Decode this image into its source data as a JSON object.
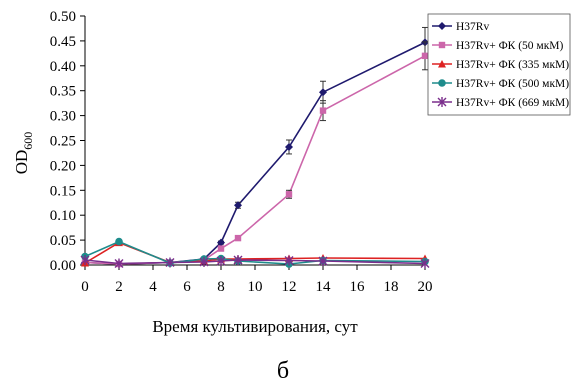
{
  "chart_data": {
    "type": "line",
    "xlabel": "Время культивирования, сут",
    "ylabel": "OD",
    "ylabel_sub": "600",
    "panel_label": "б",
    "xlim": [
      0,
      20
    ],
    "ylim": [
      0,
      0.5
    ],
    "x_ticks": [
      0,
      2,
      4,
      6,
      8,
      10,
      12,
      14,
      16,
      18,
      20
    ],
    "x_tick_labels": [
      "0",
      "2",
      "4",
      "6",
      "8",
      "10",
      "12",
      "14",
      "16",
      "18",
      "20"
    ],
    "y_ticks": [
      0,
      0.05,
      0.1,
      0.15,
      0.2,
      0.25,
      0.3,
      0.35,
      0.4,
      0.45,
      0.5
    ],
    "y_tick_labels": [
      "0.00",
      "0.05",
      "0.10",
      "0.15",
      "0.20",
      "0.25",
      "0.30",
      "0.35",
      "0.40",
      "0.45",
      "0.50"
    ],
    "grid": false,
    "legend_position": "top-right",
    "series": [
      {
        "name": "H37Rv",
        "color": "#1F1A6E",
        "marker": "diamond",
        "x": [
          0,
          2,
          5,
          7,
          8,
          9,
          12,
          14,
          20
        ],
        "y": [
          0.005,
          0.002,
          0.005,
          0.012,
          0.045,
          0.12,
          0.237,
          0.347,
          0.447
        ],
        "err": [
          0,
          0,
          0,
          0,
          0.003,
          0.006,
          0.014,
          0.022,
          0.03
        ]
      },
      {
        "name": "H37Rv+ ФК (50 мкМ)",
        "color": "#CC66AA",
        "marker": "square",
        "x": [
          0,
          2,
          5,
          7,
          8,
          9,
          12,
          14,
          20
        ],
        "y": [
          0.005,
          0.002,
          0.005,
          0.01,
          0.033,
          0.054,
          0.142,
          0.31,
          0.42
        ],
        "err": [
          0,
          0,
          0,
          0,
          0,
          0.003,
          0.008,
          0.02,
          0.028
        ]
      },
      {
        "name": "H37Rv+ ФК (335 мкМ)",
        "color": "#DD2222",
        "marker": "triangle",
        "x": [
          0,
          2,
          5,
          7,
          8,
          9,
          12,
          14,
          20
        ],
        "y": [
          0.004,
          0.045,
          0.005,
          0.008,
          0.012,
          0.012,
          0.013,
          0.014,
          0.013
        ],
        "err": [
          0,
          0.004,
          0,
          0,
          0,
          0,
          0,
          0,
          0
        ]
      },
      {
        "name": "H37Rv+ ФК (500 мкМ)",
        "color": "#1E8C8C",
        "marker": "circle",
        "x": [
          0,
          2,
          5,
          7,
          8,
          9,
          12,
          14,
          20
        ],
        "y": [
          0.017,
          0.047,
          0.004,
          0.012,
          0.013,
          0.008,
          0.002,
          0.009,
          0.007
        ],
        "err": [
          0,
          0,
          0,
          0,
          0,
          0,
          0,
          0,
          0
        ]
      },
      {
        "name": "H37Rv+ ФК (669 мкМ)",
        "color": "#7A2E8C",
        "marker": "asterisk",
        "x": [
          0,
          2,
          5,
          7,
          8,
          9,
          12,
          14,
          20
        ],
        "y": [
          0.01,
          0.003,
          0.005,
          0.006,
          0.008,
          0.01,
          0.009,
          0.008,
          0.003
        ],
        "err": [
          0,
          0,
          0,
          0,
          0,
          0,
          0,
          0,
          0
        ]
      }
    ]
  }
}
